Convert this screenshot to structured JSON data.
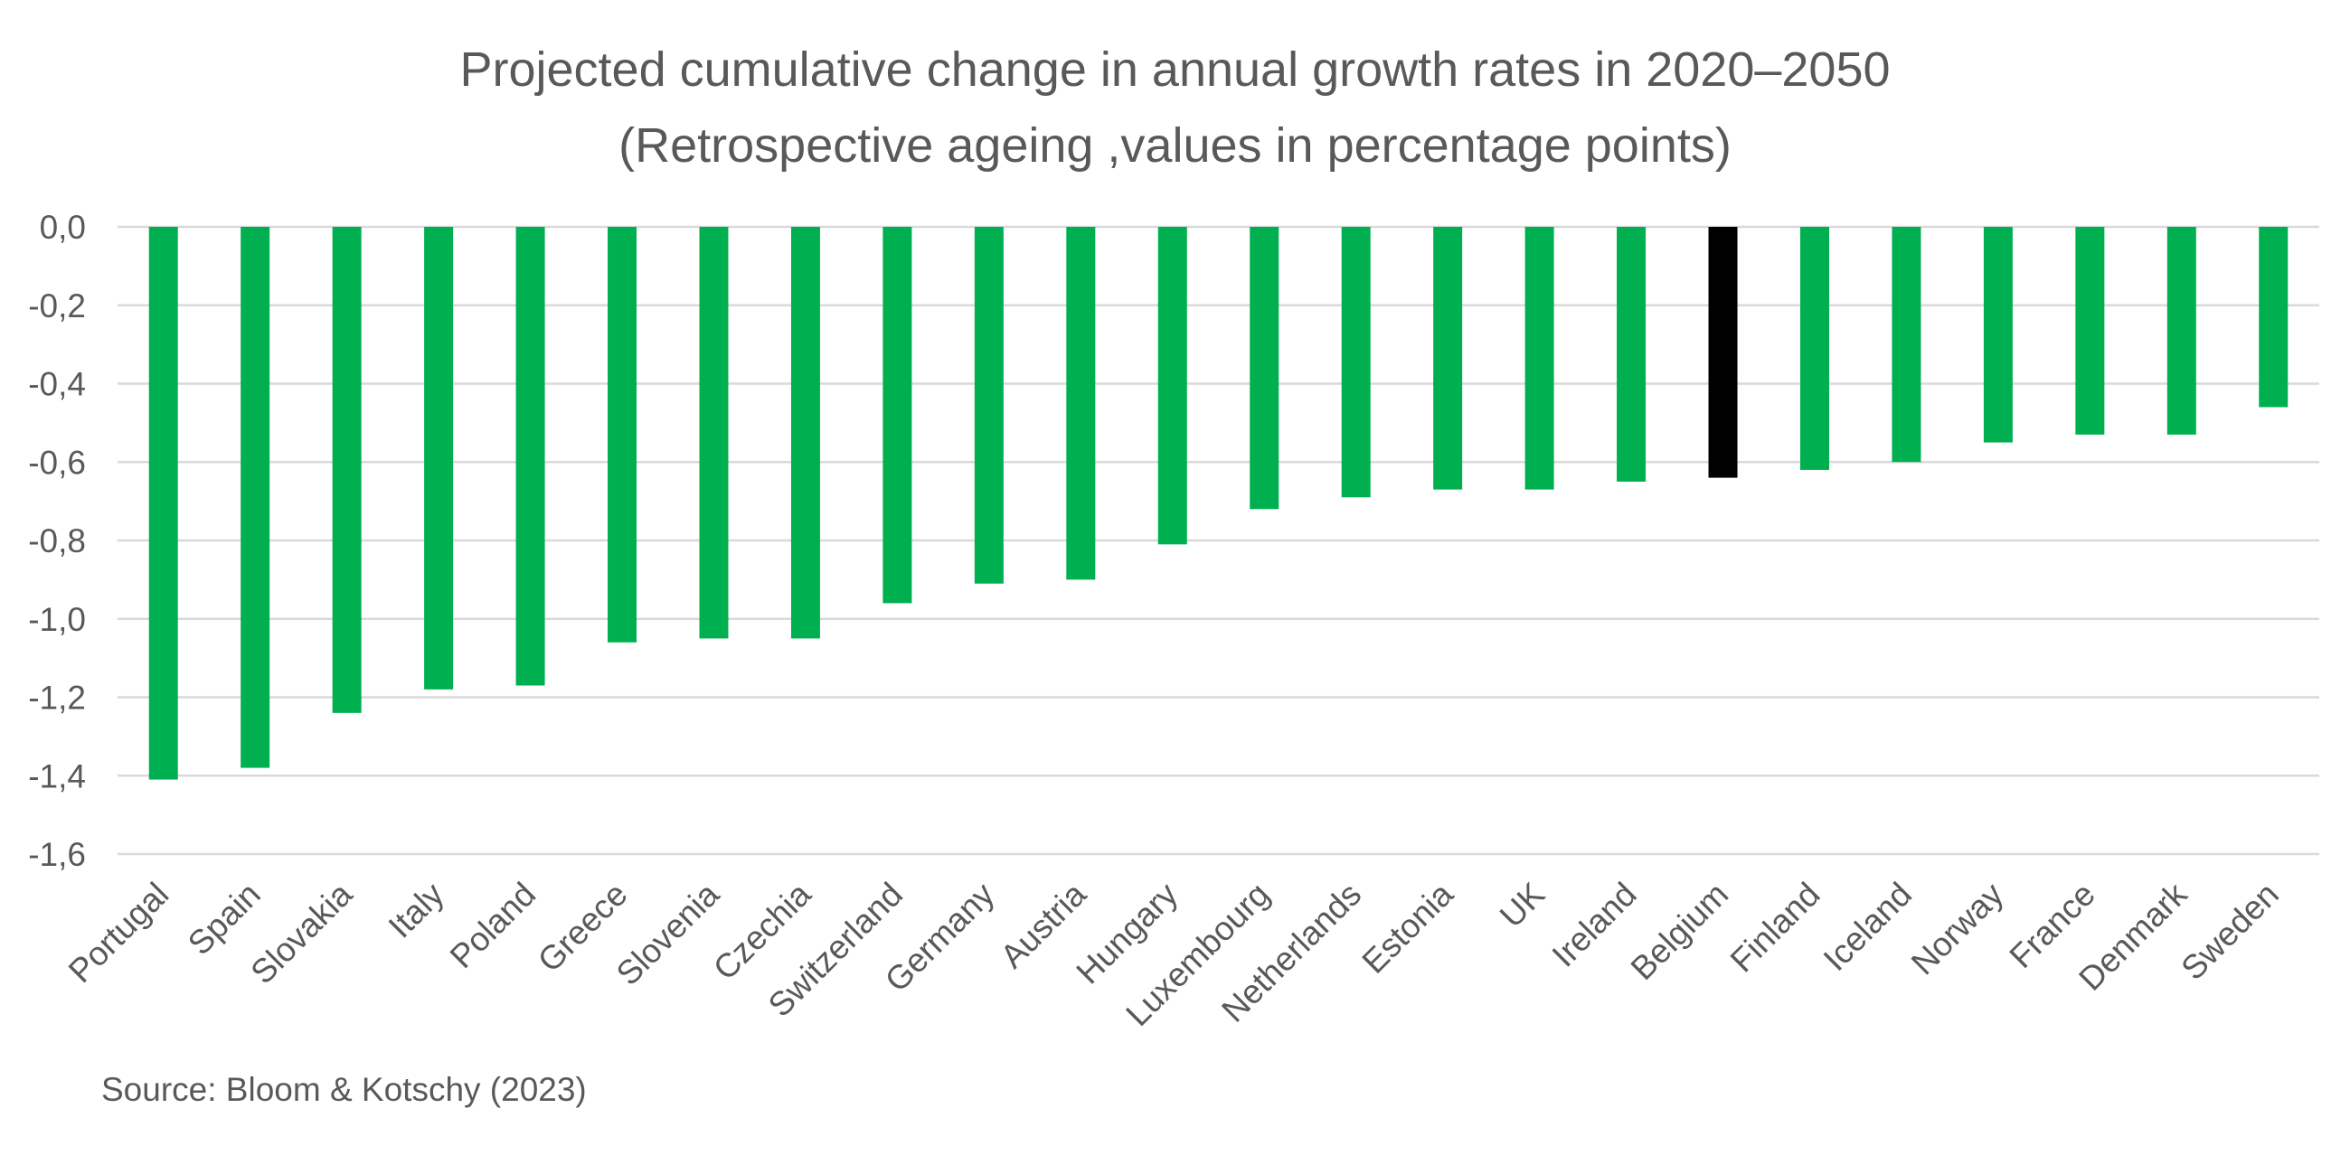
{
  "title_line1": "Projected cumulative change in annual growth rates in 2020–2050",
  "title_line2": "(Retrospective ageing ,values in percentage points)",
  "source": "Source: Bloom & Kotschy (2023)",
  "colors": {
    "bar": "#00b050",
    "highlight": "#000000",
    "grid": "#d9d9d9",
    "text": "#595959"
  },
  "chart_data": {
    "type": "bar",
    "title": "Projected cumulative change in annual growth rates in 2020–2050 (Retrospective ageing ,values in percentage points)",
    "categories": [
      "Portugal",
      "Spain",
      "Slovakia",
      "Italy",
      "Poland",
      "Greece",
      "Slovenia",
      "Czechia",
      "Switzerland",
      "Germany",
      "Austria",
      "Hungary",
      "Luxembourg",
      "Netherlands",
      "Estonia",
      "UK",
      "Ireland",
      "Belgium",
      "Finland",
      "Iceland",
      "Norway",
      "France",
      "Denmark",
      "Sweden"
    ],
    "values": [
      -1.41,
      -1.38,
      -1.24,
      -1.18,
      -1.17,
      -1.06,
      -1.05,
      -1.05,
      -0.96,
      -0.91,
      -0.9,
      -0.81,
      -0.72,
      -0.69,
      -0.67,
      -0.67,
      -0.65,
      -0.64,
      -0.62,
      -0.6,
      -0.55,
      -0.53,
      -0.53,
      -0.46
    ],
    "highlight_category": "Belgium",
    "ylim": [
      -1.6,
      0.0
    ],
    "yticks": [
      "0,0",
      "-0,2",
      "-0,4",
      "-0,6",
      "-0,8",
      "-1,0",
      "-1,2",
      "-1,4",
      "-1,6"
    ],
    "ytick_values": [
      0.0,
      -0.2,
      -0.4,
      -0.6,
      -0.8,
      -1.0,
      -1.2,
      -1.4,
      -1.6
    ],
    "grid": true,
    "legend": "none",
    "xlabel": "",
    "ylabel": ""
  }
}
